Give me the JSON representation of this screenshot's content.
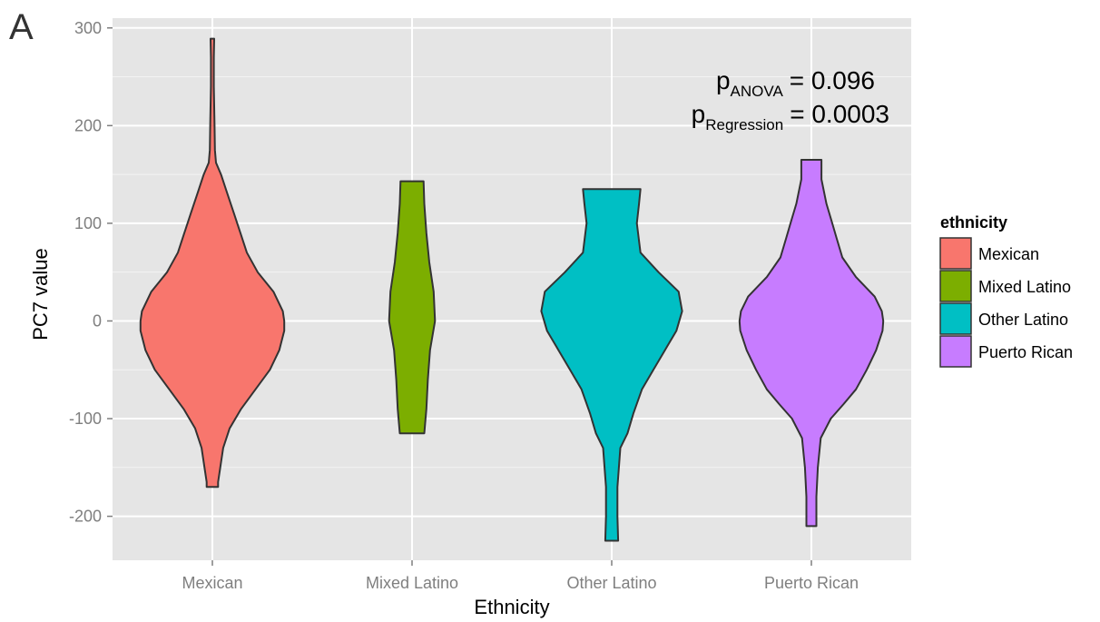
{
  "panel_label": "A",
  "colors": {
    "panel_bg": "#e5e5e5",
    "grid": "#ffffff",
    "violin_stroke": "#333333"
  },
  "annotation": {
    "p1_base": "p",
    "p1_sub": "ANOVA",
    "p1_value": "= 0.096",
    "p2_base": "p",
    "p2_sub": "Regression",
    "p2_value": "= 0.0003"
  },
  "chart_data": {
    "type": "violin",
    "title": "",
    "xlabel": "Ethnicity",
    "ylabel": "PC7 value",
    "ylim": [
      -245,
      310
    ],
    "yticks": [
      -200,
      -100,
      0,
      100,
      200,
      300
    ],
    "ytick_labels": [
      "-200",
      "-100",
      "0",
      "100",
      "200",
      "300"
    ],
    "categories": [
      "Mexican",
      "Mixed Latino",
      "Other Latino",
      "Puerto Rican"
    ],
    "grid": true,
    "legend": {
      "title": "ethnicity",
      "position": "right",
      "entries": [
        "Mexican",
        "Mixed Latino",
        "Other Latino",
        "Puerto Rican"
      ]
    },
    "series": [
      {
        "category": "Mexican",
        "color": "#f8766d",
        "min": -170,
        "max": 289,
        "profile": [
          [
            -170,
            0.08
          ],
          [
            -165,
            0.08
          ],
          [
            -150,
            0.11
          ],
          [
            -130,
            0.15
          ],
          [
            -110,
            0.24
          ],
          [
            -90,
            0.4
          ],
          [
            -70,
            0.6
          ],
          [
            -50,
            0.8
          ],
          [
            -30,
            0.93
          ],
          [
            -10,
            1.0
          ],
          [
            0,
            1.0
          ],
          [
            10,
            0.98
          ],
          [
            30,
            0.85
          ],
          [
            50,
            0.63
          ],
          [
            70,
            0.48
          ],
          [
            90,
            0.39
          ],
          [
            110,
            0.3
          ],
          [
            130,
            0.21
          ],
          [
            150,
            0.12
          ],
          [
            162,
            0.05
          ],
          [
            175,
            0.035
          ],
          [
            200,
            0.03
          ],
          [
            240,
            0.02
          ],
          [
            270,
            0.02
          ],
          [
            289,
            0.025
          ]
        ]
      },
      {
        "category": "Mixed Latino",
        "color": "#7cae00",
        "min": -115,
        "max": 143,
        "profile": [
          [
            -115,
            0.17
          ],
          [
            -90,
            0.2
          ],
          [
            -60,
            0.22
          ],
          [
            -30,
            0.25
          ],
          [
            0,
            0.32
          ],
          [
            30,
            0.3
          ],
          [
            60,
            0.24
          ],
          [
            90,
            0.2
          ],
          [
            120,
            0.17
          ],
          [
            143,
            0.16
          ]
        ]
      },
      {
        "category": "Other Latino",
        "color": "#00bfc4",
        "min": -225,
        "max": 135,
        "profile": [
          [
            -225,
            0.09
          ],
          [
            -200,
            0.08
          ],
          [
            -170,
            0.08
          ],
          [
            -150,
            0.1
          ],
          [
            -130,
            0.12
          ],
          [
            -115,
            0.22
          ],
          [
            -95,
            0.3
          ],
          [
            -70,
            0.42
          ],
          [
            -50,
            0.58
          ],
          [
            -30,
            0.74
          ],
          [
            -10,
            0.9
          ],
          [
            10,
            0.98
          ],
          [
            30,
            0.93
          ],
          [
            50,
            0.65
          ],
          [
            70,
            0.4
          ],
          [
            100,
            0.35
          ],
          [
            120,
            0.38
          ],
          [
            135,
            0.4
          ]
        ]
      },
      {
        "category": "Puerto Rican",
        "color": "#c77cff",
        "min": -210,
        "max": 165,
        "profile": [
          [
            -210,
            0.07
          ],
          [
            -180,
            0.07
          ],
          [
            -150,
            0.09
          ],
          [
            -120,
            0.13
          ],
          [
            -100,
            0.27
          ],
          [
            -85,
            0.45
          ],
          [
            -70,
            0.62
          ],
          [
            -50,
            0.77
          ],
          [
            -30,
            0.9
          ],
          [
            -10,
            0.99
          ],
          [
            0,
            1.0
          ],
          [
            10,
            0.98
          ],
          [
            25,
            0.88
          ],
          [
            45,
            0.62
          ],
          [
            65,
            0.43
          ],
          [
            85,
            0.35
          ],
          [
            100,
            0.29
          ],
          [
            120,
            0.21
          ],
          [
            145,
            0.14
          ],
          [
            165,
            0.14
          ]
        ]
      }
    ]
  }
}
